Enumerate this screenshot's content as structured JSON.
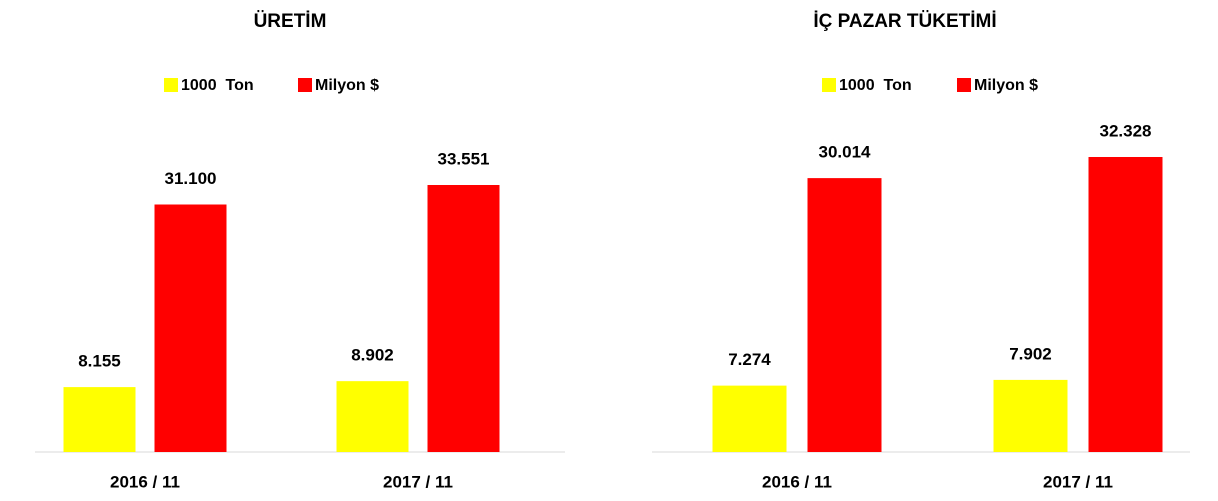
{
  "chart_data": [
    {
      "type": "bar",
      "title": "ÜRETİM",
      "categories": [
        "2016 / 11",
        "2017 / 11"
      ],
      "series": [
        {
          "name": "1000  Ton",
          "color": "#ffff00",
          "values": [
            8155,
            8902
          ],
          "value_labels": [
            "8.155",
            "8.902"
          ]
        },
        {
          "name": "Milyon $",
          "color": "#ff0000",
          "values": [
            31100,
            33551
          ],
          "value_labels": [
            "31.100",
            "33.551"
          ]
        }
      ]
    },
    {
      "type": "bar",
      "title": "İÇ PAZAR TÜKETİMİ",
      "categories": [
        "2016 / 11",
        "2017 / 11"
      ],
      "series": [
        {
          "name": "1000  Ton",
          "color": "#ffff00",
          "values": [
            7274,
            7902
          ],
          "value_labels": [
            "7.274",
            "7.902"
          ]
        },
        {
          "name": "Milyon $",
          "color": "#ff0000",
          "values": [
            30014,
            32328
          ],
          "value_labels": [
            "30.014",
            "32.328"
          ]
        }
      ]
    }
  ]
}
